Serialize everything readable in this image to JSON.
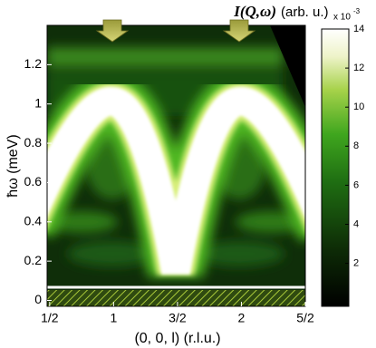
{
  "chart_data": {
    "type": "heatmap",
    "title_parts": [
      "I(Q,ω)",
      "(arb. u.)"
    ],
    "x_label": "(0, 0, l) (r.l.u.)",
    "y_label": "ħω (meV)",
    "xlim": [
      0.48,
      2.5
    ],
    "xticks": [
      {
        "value": 0.5,
        "label": "1/2"
      },
      1,
      {
        "value": 1.5,
        "label": "3/2"
      },
      2,
      {
        "value": 2.5,
        "label": "5/2"
      }
    ],
    "ylim": [
      -0.03,
      1.4
    ],
    "yticks": [
      0,
      0.2,
      0.4,
      0.6,
      0.8,
      1,
      1.2
    ],
    "clim": [
      -0.2,
      14
    ],
    "cticks": [
      2,
      4,
      6,
      8,
      10,
      12,
      14
    ],
    "colorbar_multiplier": {
      "base": "x 10",
      "exponent": "-3"
    }
  }
}
